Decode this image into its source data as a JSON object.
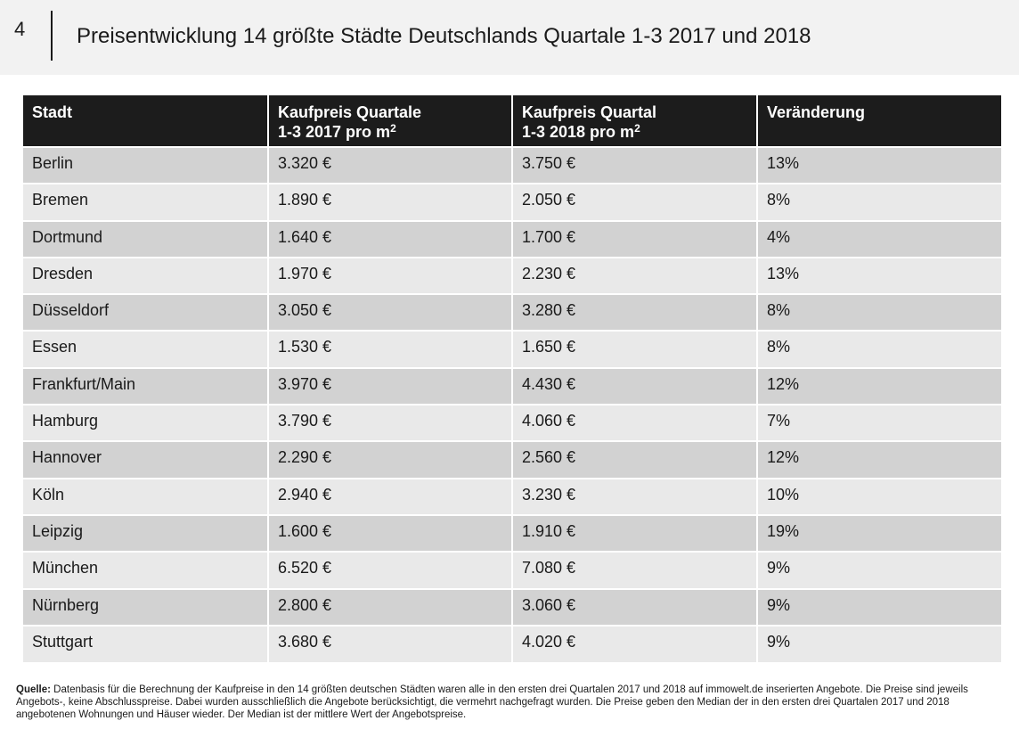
{
  "header": {
    "page_number": "4",
    "title": "Preisentwicklung 14 größte Städte Deutschlands Quartale 1-3 2017 und 2018"
  },
  "table": {
    "columns": [
      {
        "line1": "Stadt",
        "line2": "",
        "sup": ""
      },
      {
        "line1": "Kaufpreis Quartale",
        "line2": "1-3 2017 pro m",
        "sup": "2"
      },
      {
        "line1": "Kaufpreis Quartal",
        "line2": "1-3 2018 pro m",
        "sup": "2"
      },
      {
        "line1": "Veränderung",
        "line2": "",
        "sup": ""
      }
    ],
    "rows": [
      [
        "Berlin",
        "3.320 €",
        "3.750 €",
        "13%"
      ],
      [
        "Bremen",
        "1.890 €",
        "2.050 €",
        "8%"
      ],
      [
        "Dortmund",
        "1.640 €",
        "1.700 €",
        "4%"
      ],
      [
        "Dresden",
        "1.970 €",
        "2.230 €",
        "13%"
      ],
      [
        "Düsseldorf",
        "3.050 €",
        "3.280 €",
        "8%"
      ],
      [
        "Essen",
        "1.530 €",
        "1.650 €",
        "8%"
      ],
      [
        "Frankfurt/Main",
        "3.970 €",
        "4.430 €",
        "12%"
      ],
      [
        "Hamburg",
        "3.790 €",
        "4.060 €",
        "7%"
      ],
      [
        "Hannover",
        "2.290 €",
        "2.560 €",
        "12%"
      ],
      [
        "Köln",
        "2.940 €",
        "3.230 €",
        "10%"
      ],
      [
        "Leipzig",
        "1.600 €",
        "1.910 €",
        "19%"
      ],
      [
        "München",
        "6.520 €",
        "7.080 €",
        "9%"
      ],
      [
        "Nürnberg",
        "2.800 €",
        "3.060 €",
        "9%"
      ],
      [
        "Stuttgart",
        "3.680 €",
        "4.020 €",
        "9%"
      ]
    ]
  },
  "footnote": {
    "label": "Quelle:",
    "text": " Datenbasis für die Berechnung der Kaufpreise in den 14 größten deutschen Städten waren alle in den ersten drei Quartalen 2017 und 2018 auf immowelt.de inserierten Angebote. Die Preise sind jeweils Angebots-, keine Abschlusspreise. Dabei wurden ausschließlich die Angebote berücksichtigt, die vermehrt nachgefragt wurden. Die Preise geben den Median der in den ersten drei Quartalen 2017 und 2018 angebotenen Wohnungen und Häuser wieder. Der Median ist der mittlere Wert der Angebotspreise."
  }
}
